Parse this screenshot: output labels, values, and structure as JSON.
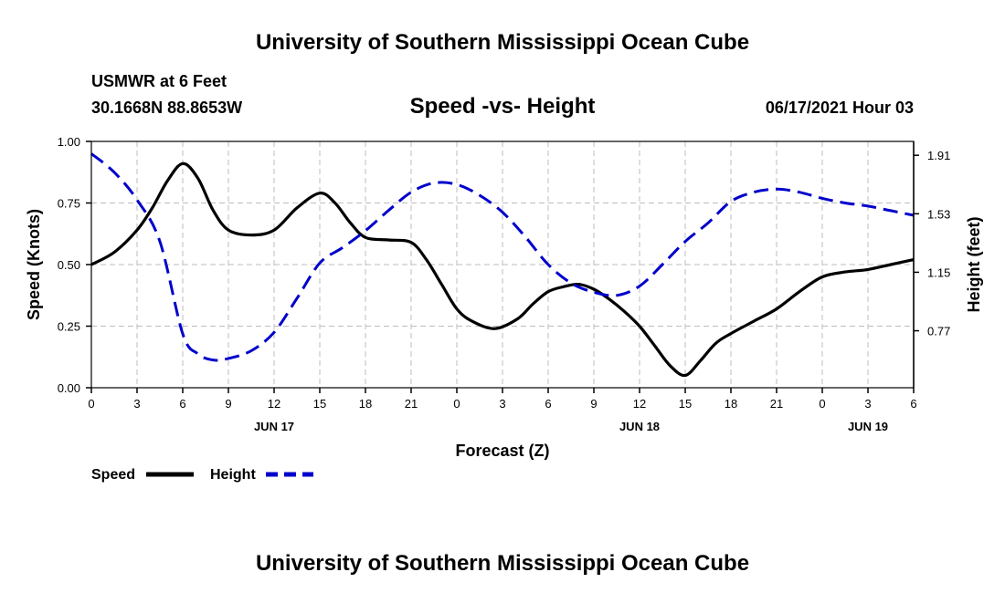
{
  "header": {
    "title_top": "University of Southern Mississippi Ocean Cube",
    "station": "USMWR at 6 Feet",
    "coords": "30.1668N  88.8653W",
    "chart_title": "Speed -vs- Height",
    "datetime": "06/17/2021 Hour 03",
    "title_bottom": "University of Southern Mississippi Ocean Cube"
  },
  "chart_data": {
    "type": "line",
    "xlabel": "Forecast (Z)",
    "ylabel_left": "Speed (Knots)",
    "ylabel_right": "Height (feet)",
    "x_hours": [
      0,
      54
    ],
    "x_ticks": [
      {
        "h": 0,
        "label": "0"
      },
      {
        "h": 3,
        "label": "3"
      },
      {
        "h": 6,
        "label": "6"
      },
      {
        "h": 9,
        "label": "9"
      },
      {
        "h": 12,
        "label": "12"
      },
      {
        "h": 15,
        "label": "15"
      },
      {
        "h": 18,
        "label": "18"
      },
      {
        "h": 21,
        "label": "21"
      },
      {
        "h": 24,
        "label": "0"
      },
      {
        "h": 27,
        "label": "3"
      },
      {
        "h": 30,
        "label": "6"
      },
      {
        "h": 33,
        "label": "9"
      },
      {
        "h": 36,
        "label": "12"
      },
      {
        "h": 39,
        "label": "15"
      },
      {
        "h": 42,
        "label": "18"
      },
      {
        "h": 45,
        "label": "21"
      },
      {
        "h": 48,
        "label": "0"
      },
      {
        "h": 51,
        "label": "3"
      },
      {
        "h": 54,
        "label": "6"
      }
    ],
    "day_labels": [
      {
        "h": 12,
        "label": "JUN 17"
      },
      {
        "h": 36,
        "label": "JUN 18"
      },
      {
        "h": 51,
        "label": "JUN 19"
      }
    ],
    "y_left": {
      "min": 0,
      "max": 1,
      "ticks": [
        "0.00",
        "0.25",
        "0.50",
        "0.75",
        "1.00"
      ]
    },
    "y_right": {
      "min": 0.4,
      "max": 2.0,
      "ticks": [
        "0.77",
        "1.15",
        "1.53",
        "1.91"
      ]
    },
    "series": [
      {
        "name": "Speed",
        "axis": "left",
        "color": "#000000",
        "style": "solid",
        "points": [
          [
            0,
            0.5
          ],
          [
            1.5,
            0.55
          ],
          [
            3,
            0.64
          ],
          [
            4,
            0.73
          ],
          [
            5,
            0.84
          ],
          [
            6,
            0.91
          ],
          [
            7,
            0.85
          ],
          [
            8,
            0.72
          ],
          [
            9,
            0.64
          ],
          [
            10.5,
            0.62
          ],
          [
            12,
            0.64
          ],
          [
            13.5,
            0.73
          ],
          [
            15,
            0.79
          ],
          [
            16,
            0.75
          ],
          [
            17,
            0.67
          ],
          [
            18,
            0.61
          ],
          [
            19.5,
            0.6
          ],
          [
            21,
            0.59
          ],
          [
            22,
            0.52
          ],
          [
            23,
            0.42
          ],
          [
            24,
            0.32
          ],
          [
            25,
            0.27
          ],
          [
            26.5,
            0.24
          ],
          [
            28,
            0.28
          ],
          [
            29,
            0.34
          ],
          [
            30,
            0.39
          ],
          [
            31,
            0.41
          ],
          [
            32,
            0.42
          ],
          [
            33,
            0.4
          ],
          [
            34,
            0.36
          ],
          [
            35,
            0.31
          ],
          [
            36,
            0.25
          ],
          [
            37,
            0.17
          ],
          [
            38,
            0.09
          ],
          [
            39,
            0.05
          ],
          [
            40,
            0.11
          ],
          [
            41,
            0.18
          ],
          [
            42,
            0.22
          ],
          [
            43.5,
            0.27
          ],
          [
            45,
            0.32
          ],
          [
            46.5,
            0.39
          ],
          [
            48,
            0.45
          ],
          [
            49.5,
            0.47
          ],
          [
            51,
            0.48
          ],
          [
            52.5,
            0.5
          ],
          [
            54,
            0.52
          ]
        ]
      },
      {
        "name": "Height",
        "axis": "right",
        "color": "#0000cc",
        "style": "dashed",
        "points": [
          [
            0,
            1.92
          ],
          [
            1.5,
            1.8
          ],
          [
            3,
            1.62
          ],
          [
            4.5,
            1.35
          ],
          [
            6,
            0.75
          ],
          [
            7,
            0.62
          ],
          [
            8,
            0.58
          ],
          [
            9,
            0.59
          ],
          [
            10.5,
            0.64
          ],
          [
            12,
            0.76
          ],
          [
            13.5,
            0.98
          ],
          [
            15,
            1.21
          ],
          [
            16.5,
            1.31
          ],
          [
            18,
            1.42
          ],
          [
            19.5,
            1.55
          ],
          [
            21,
            1.67
          ],
          [
            22.5,
            1.73
          ],
          [
            24,
            1.72
          ],
          [
            25.5,
            1.65
          ],
          [
            27,
            1.54
          ],
          [
            28.5,
            1.38
          ],
          [
            30,
            1.2
          ],
          [
            31.5,
            1.08
          ],
          [
            33,
            1.02
          ],
          [
            34.5,
            1.0
          ],
          [
            36,
            1.06
          ],
          [
            37.5,
            1.2
          ],
          [
            39,
            1.35
          ],
          [
            40.5,
            1.47
          ],
          [
            42,
            1.61
          ],
          [
            43.5,
            1.67
          ],
          [
            45,
            1.69
          ],
          [
            46.5,
            1.67
          ],
          [
            48,
            1.63
          ],
          [
            49.5,
            1.6
          ],
          [
            51,
            1.58
          ],
          [
            52.5,
            1.55
          ],
          [
            54,
            1.52
          ]
        ]
      }
    ]
  }
}
